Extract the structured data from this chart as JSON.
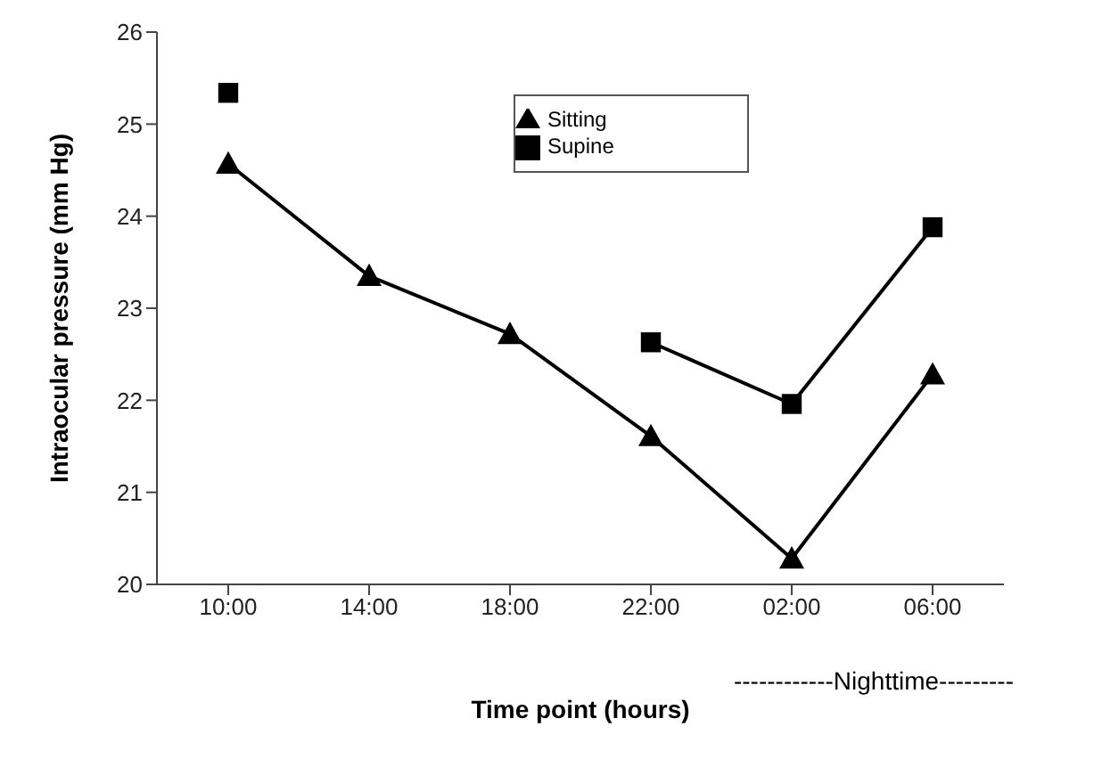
{
  "chart_data": {
    "type": "line",
    "xlabel": "Time point (hours)",
    "ylabel": "Intraocular pressure (mm Hg)",
    "categories": [
      "10:00",
      "14:00",
      "18:00",
      "22:00",
      "02:00",
      "06:00"
    ],
    "series": [
      {
        "name": "Sitting",
        "color": "#000000",
        "marker": "triangle",
        "values": [
          24.57,
          23.35,
          22.72,
          21.61,
          20.28,
          22.28
        ]
      },
      {
        "name": "Supine",
        "color": "#000000",
        "marker": "square",
        "values": [
          25.34,
          null,
          null,
          22.63,
          21.96,
          23.88
        ]
      }
    ],
    "ylim": [
      20,
      26
    ],
    "yticks": [
      20,
      21,
      22,
      23,
      24,
      25,
      26
    ],
    "grid": false,
    "legend": "top",
    "line_style": "solid",
    "annotations": [
      "------------Nighttime---------"
    ]
  }
}
